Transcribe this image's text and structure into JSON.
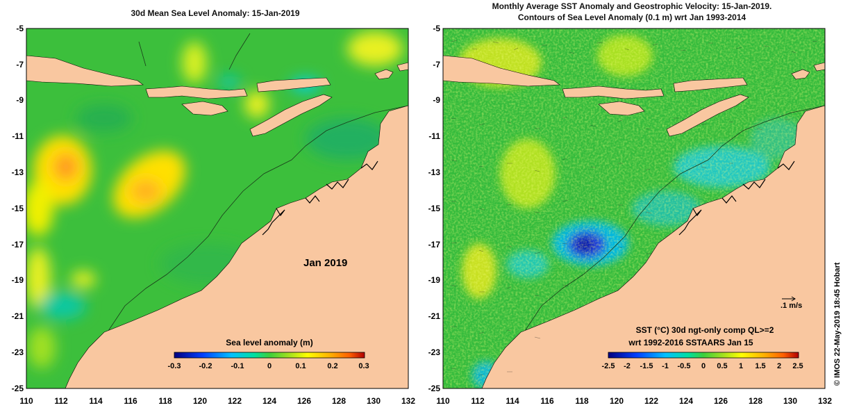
{
  "colors": {
    "land": "#f9c7a0",
    "ocean_base": "#3cbf3c",
    "colormap": [
      "#00007f",
      "#0040ff",
      "#00bfff",
      "#00e0a0",
      "#3ccf3c",
      "#a0e020",
      "#ffff00",
      "#ffb000",
      "#ff6000",
      "#b00000"
    ]
  },
  "left_panel": {
    "title": "30d Mean Sea Level Anomaly: 15-Jan-2019",
    "x_ticks": [
      "110",
      "112",
      "114",
      "116",
      "118",
      "120",
      "122",
      "124",
      "126",
      "128",
      "130",
      "132"
    ],
    "y_ticks": [
      "-5",
      "-7",
      "-9",
      "-11",
      "-13",
      "-15",
      "-17",
      "-19",
      "-21",
      "-23",
      "-25"
    ],
    "month_label": "Jan 2019",
    "colorbar": {
      "label": "Sea level anomaly (m)",
      "ticks": [
        "-0.3",
        "-0.2",
        "-0.1",
        "0",
        "0.1",
        "0.2",
        "0.3"
      ],
      "range": [
        -0.3,
        0.3
      ]
    }
  },
  "right_panel": {
    "title_line1": "Monthly Average SST Anomaly  and Geostrophic Velocity: 15-Jan-2019.",
    "title_line2": "Contours of Sea Level Anomaly (0.1 m) wrt Jan 1993-2014",
    "x_ticks": [
      "110",
      "112",
      "114",
      "116",
      "118",
      "120",
      "122",
      "124",
      "126",
      "128",
      "130",
      "132"
    ],
    "y_ticks": [
      "-5",
      "-7",
      "-9",
      "-11",
      "-13",
      "-15",
      "-17",
      "-19",
      "-21",
      "-23",
      "-25"
    ],
    "velocity_scale": ".1 m/s",
    "legend_line1": "SST (°C) 30d ngt-only comp QL>=2",
    "legend_line2": "wrt 1992-2016 SSTAARS Jan 15",
    "colorbar": {
      "ticks": [
        "-2.5",
        "-2",
        "-1.5",
        "-1",
        "-0.5",
        "0",
        "0.5",
        "1",
        "1.5",
        "2",
        "2.5"
      ],
      "range": [
        -2.5,
        2.5
      ]
    }
  },
  "credit": "© IMOS 22-May-2019 18:45 Hobart"
}
